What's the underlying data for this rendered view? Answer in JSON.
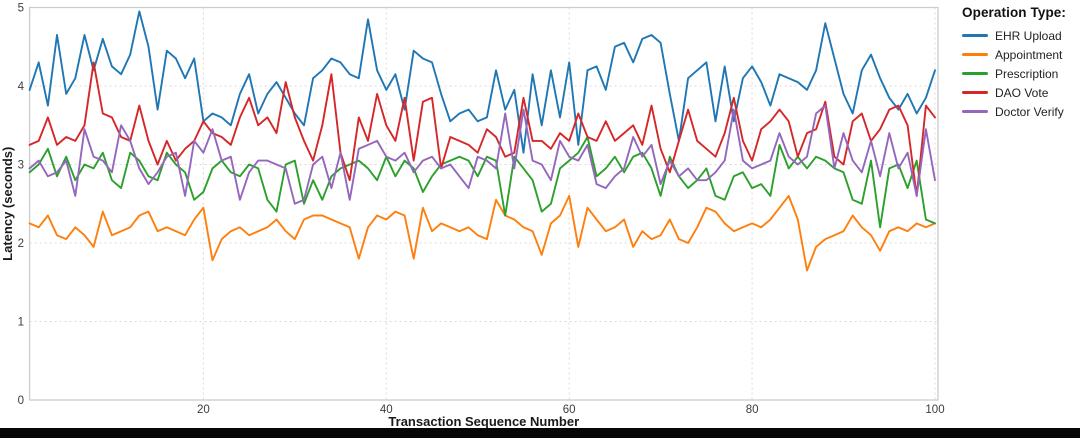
{
  "page": {
    "background_color": "#ffffff",
    "bottom_bar_color": "#060606"
  },
  "chart_data": {
    "type": "line",
    "title": "",
    "xlabel": "Transaction Sequence Number",
    "ylabel": "Latency (seconds)",
    "x_start": 1,
    "x_step": 1,
    "n_points": 100,
    "xlim": [
      1,
      100
    ],
    "ylim": [
      0,
      5
    ],
    "x_ticks": [
      20,
      40,
      60,
      80,
      100
    ],
    "y_ticks": [
      0,
      1,
      2,
      3,
      4,
      5
    ],
    "grid": true,
    "grid_style": "dotted",
    "grid_color": "#dadada",
    "frame_color": "#cccccc",
    "tick_label_color": "#3c3c3c",
    "axis_title_color": "#1a1a1a",
    "legend_title": "Operation Type:",
    "legend_position": "right-outside-top",
    "series": [
      {
        "name": "EHR Upload",
        "color": "#1f77b4",
        "values": [
          3.95,
          4.3,
          3.75,
          4.65,
          3.9,
          4.1,
          4.65,
          4.2,
          4.6,
          4.25,
          4.15,
          4.4,
          4.95,
          4.5,
          3.7,
          4.45,
          4.35,
          4.1,
          4.35,
          3.55,
          3.65,
          3.6,
          3.5,
          3.9,
          4.15,
          3.65,
          3.9,
          4.05,
          3.85,
          3.65,
          3.5,
          4.1,
          4.2,
          4.35,
          4.3,
          4.15,
          4.1,
          4.85,
          4.2,
          3.95,
          4.15,
          3.7,
          4.45,
          4.35,
          4.3,
          3.9,
          3.55,
          3.65,
          3.7,
          3.55,
          3.6,
          4.2,
          3.7,
          3.95,
          3.15,
          4.15,
          3.5,
          4.2,
          3.6,
          4.3,
          3.25,
          4.2,
          4.25,
          3.95,
          4.5,
          4.55,
          4.3,
          4.6,
          4.65,
          4.55,
          3.9,
          3.3,
          4.1,
          4.2,
          4.3,
          3.55,
          4.25,
          3.55,
          4.1,
          4.25,
          4.05,
          3.75,
          4.15,
          4.1,
          4.05,
          3.95,
          4.2,
          4.8,
          4.35,
          3.9,
          3.65,
          4.2,
          4.4,
          4.1,
          3.85,
          3.7,
          3.9,
          3.65,
          3.85,
          4.2
        ]
      },
      {
        "name": "Appointment",
        "color": "#ff7f0e",
        "values": [
          2.25,
          2.2,
          2.35,
          2.1,
          2.05,
          2.2,
          2.1,
          1.95,
          2.4,
          2.1,
          2.15,
          2.2,
          2.35,
          2.4,
          2.15,
          2.2,
          2.15,
          2.1,
          2.3,
          2.45,
          1.78,
          2.05,
          2.15,
          2.2,
          2.1,
          2.15,
          2.2,
          2.3,
          2.15,
          2.05,
          2.3,
          2.35,
          2.35,
          2.3,
          2.25,
          2.2,
          1.8,
          2.2,
          2.35,
          2.3,
          2.4,
          2.35,
          1.8,
          2.45,
          2.15,
          2.25,
          2.2,
          2.15,
          2.2,
          2.1,
          2.05,
          2.55,
          2.35,
          2.3,
          2.2,
          2.15,
          1.85,
          2.25,
          2.35,
          2.6,
          1.95,
          2.45,
          2.3,
          2.15,
          2.2,
          2.3,
          1.95,
          2.15,
          2.05,
          2.1,
          2.3,
          2.05,
          2.0,
          2.2,
          2.45,
          2.4,
          2.25,
          2.15,
          2.2,
          2.25,
          2.2,
          2.3,
          2.45,
          2.6,
          2.3,
          1.65,
          1.95,
          2.05,
          2.1,
          2.15,
          2.35,
          2.2,
          2.1,
          1.9,
          2.15,
          2.2,
          2.15,
          2.25,
          2.2,
          2.25
        ]
      },
      {
        "name": "Prescription",
        "color": "#2ca02c",
        "values": [
          2.9,
          3.0,
          3.2,
          2.85,
          3.1,
          2.8,
          3.0,
          2.95,
          3.15,
          2.8,
          2.7,
          3.15,
          3.05,
          2.85,
          2.8,
          3.15,
          3.0,
          2.9,
          2.55,
          2.65,
          2.95,
          3.05,
          2.9,
          2.85,
          3.0,
          2.95,
          2.55,
          2.4,
          3.0,
          3.05,
          2.5,
          2.8,
          2.55,
          2.85,
          2.95,
          3.0,
          3.05,
          2.95,
          2.8,
          3.1,
          2.85,
          3.05,
          2.95,
          2.65,
          2.85,
          3.0,
          3.05,
          3.1,
          3.05,
          2.85,
          3.1,
          3.05,
          2.35,
          3.1,
          2.95,
          2.8,
          2.4,
          2.5,
          2.95,
          3.05,
          3.15,
          3.35,
          2.85,
          2.95,
          3.1,
          2.9,
          3.1,
          3.15,
          2.95,
          2.6,
          3.1,
          2.85,
          2.7,
          2.8,
          2.95,
          2.6,
          2.55,
          2.85,
          2.9,
          2.7,
          2.75,
          2.6,
          3.25,
          2.95,
          3.1,
          2.95,
          3.1,
          3.05,
          2.95,
          2.9,
          2.55,
          2.5,
          3.05,
          2.2,
          2.95,
          3.0,
          2.7,
          3.05,
          2.3,
          2.25
        ]
      },
      {
        "name": "DAO Vote",
        "color": "#d62728",
        "values": [
          3.25,
          3.3,
          3.6,
          3.25,
          3.35,
          3.3,
          3.5,
          4.3,
          3.65,
          3.6,
          3.35,
          3.3,
          3.75,
          3.3,
          3.0,
          3.3,
          3.05,
          3.2,
          3.3,
          3.55,
          3.4,
          3.35,
          3.25,
          3.6,
          3.85,
          3.5,
          3.6,
          3.4,
          4.05,
          3.6,
          3.3,
          3.05,
          3.5,
          4.15,
          3.15,
          2.8,
          3.6,
          3.3,
          3.9,
          3.5,
          3.3,
          3.85,
          3.05,
          3.8,
          3.85,
          2.95,
          3.35,
          3.3,
          3.25,
          3.15,
          3.45,
          3.35,
          3.1,
          3.15,
          3.85,
          3.3,
          3.3,
          3.2,
          3.4,
          3.3,
          3.65,
          3.35,
          3.3,
          3.55,
          3.3,
          3.4,
          3.5,
          3.25,
          3.75,
          3.2,
          2.9,
          3.3,
          3.7,
          3.3,
          3.2,
          3.1,
          3.4,
          3.85,
          3.3,
          3.05,
          3.45,
          3.55,
          3.7,
          3.55,
          3.1,
          3.4,
          3.45,
          3.8,
          3.1,
          3.0,
          3.55,
          3.65,
          3.3,
          3.45,
          3.7,
          3.75,
          3.5,
          2.6,
          3.75,
          3.6
        ]
      },
      {
        "name": "Doctor Verify",
        "color": "#9467bd",
        "values": [
          2.95,
          3.05,
          2.85,
          2.9,
          3.05,
          2.6,
          3.45,
          3.1,
          3.05,
          2.9,
          3.5,
          3.3,
          2.95,
          2.75,
          2.9,
          3.1,
          3.15,
          2.6,
          3.3,
          3.15,
          3.45,
          3.05,
          3.1,
          2.55,
          2.9,
          3.05,
          3.05,
          3.0,
          2.95,
          2.5,
          2.55,
          3.0,
          3.1,
          2.7,
          3.15,
          2.55,
          3.2,
          3.25,
          3.3,
          3.1,
          3.05,
          3.15,
          2.9,
          3.05,
          3.1,
          2.95,
          3.0,
          2.85,
          2.7,
          3.1,
          3.05,
          2.95,
          3.65,
          2.95,
          3.7,
          3.05,
          3.0,
          2.8,
          3.3,
          3.1,
          3.05,
          3.25,
          2.75,
          2.7,
          2.85,
          2.95,
          3.35,
          3.1,
          3.25,
          2.75,
          3.05,
          2.85,
          2.95,
          2.8,
          2.8,
          2.9,
          3.05,
          3.7,
          3.05,
          2.95,
          3.0,
          3.05,
          3.4,
          3.1,
          3.0,
          3.1,
          3.65,
          3.75,
          2.95,
          3.4,
          3.05,
          2.9,
          3.3,
          2.85,
          3.4,
          2.95,
          3.15,
          2.6,
          3.45,
          2.8
        ]
      }
    ]
  }
}
